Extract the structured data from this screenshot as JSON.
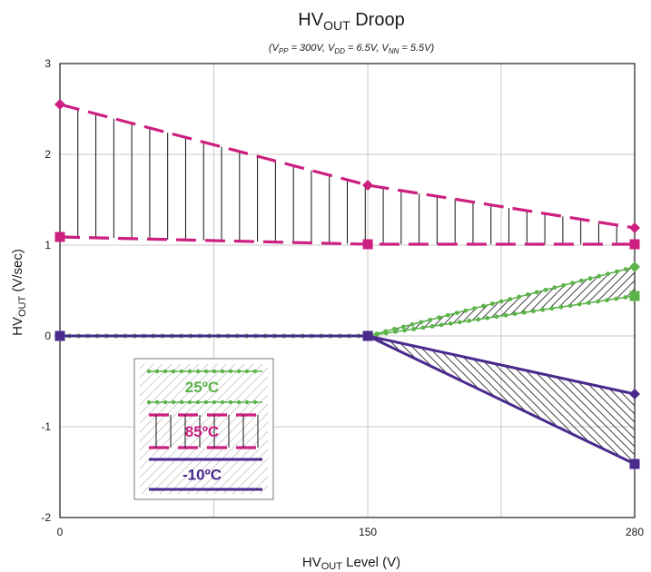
{
  "chart_data": {
    "type": "line",
    "title": {
      "main": "HV",
      "sub": "OUT",
      "tail": " Droop"
    },
    "subtitle": {
      "parts": [
        {
          "t": "(V",
          "s": false
        },
        {
          "t": "PP",
          "s": true
        },
        {
          "t": " = 300V, V",
          "s": false
        },
        {
          "t": "DD",
          "s": true
        },
        {
          "t": " = 6.5V, V",
          "s": false
        },
        {
          "t": "NN",
          "s": true
        },
        {
          "t": " = 5.5V)",
          "s": false
        }
      ]
    },
    "xlabel": {
      "main": "HV",
      "sub": "OUT",
      "tail": " Level (V)"
    },
    "ylabel": {
      "main": "HV",
      "sub": "OUT",
      "tail": "  (V/sec)"
    },
    "xlim": [
      0,
      280
    ],
    "ylim": [
      -2,
      3
    ],
    "xticks": [
      "0",
      "150",
      "280"
    ],
    "xtick_values": [
      0,
      150,
      280
    ],
    "x_gridlines": [
      0,
      75,
      150,
      215,
      280
    ],
    "yticks": [
      "3",
      "2",
      "1",
      "0",
      "-1",
      "-2"
    ],
    "ytick_values": [
      3,
      2,
      1,
      0,
      -1,
      -2
    ],
    "grid": true,
    "legend_position": "lower-left",
    "groups": [
      {
        "name": "25ºC",
        "color": "#5cb34a",
        "style": "dotted",
        "upper": {
          "x": [
            0,
            150,
            280
          ],
          "y": [
            0,
            0,
            0.76
          ],
          "marker": "diamond"
        },
        "lower": {
          "x": [
            0,
            150,
            280
          ],
          "y": [
            0,
            0,
            0.44
          ],
          "marker": "square"
        }
      },
      {
        "name": "85ºC",
        "color": "#cc1f7f",
        "style": "dashed",
        "upper": {
          "x": [
            0,
            150,
            280
          ],
          "y": [
            2.55,
            1.66,
            1.19
          ],
          "marker": "diamond"
        },
        "lower": {
          "x": [
            0,
            150,
            280
          ],
          "y": [
            1.09,
            1.01,
            1.01
          ],
          "marker": "square"
        }
      },
      {
        "name": "-10ºC",
        "color": "#4a2a8c",
        "style": "solid",
        "upper": {
          "x": [
            0,
            150,
            280
          ],
          "y": [
            0,
            0,
            -0.64
          ],
          "marker": "diamond"
        },
        "lower": {
          "x": [
            0,
            150,
            280
          ],
          "y": [
            0,
            0,
            -1.41
          ],
          "marker": "square"
        }
      }
    ],
    "legend": [
      {
        "label": "25ºC",
        "color": "#5cb34a"
      },
      {
        "label": "85ºC",
        "color": "#cc1f7f"
      },
      {
        "label": "-10ºC",
        "color": "#4a2a8c"
      }
    ]
  }
}
